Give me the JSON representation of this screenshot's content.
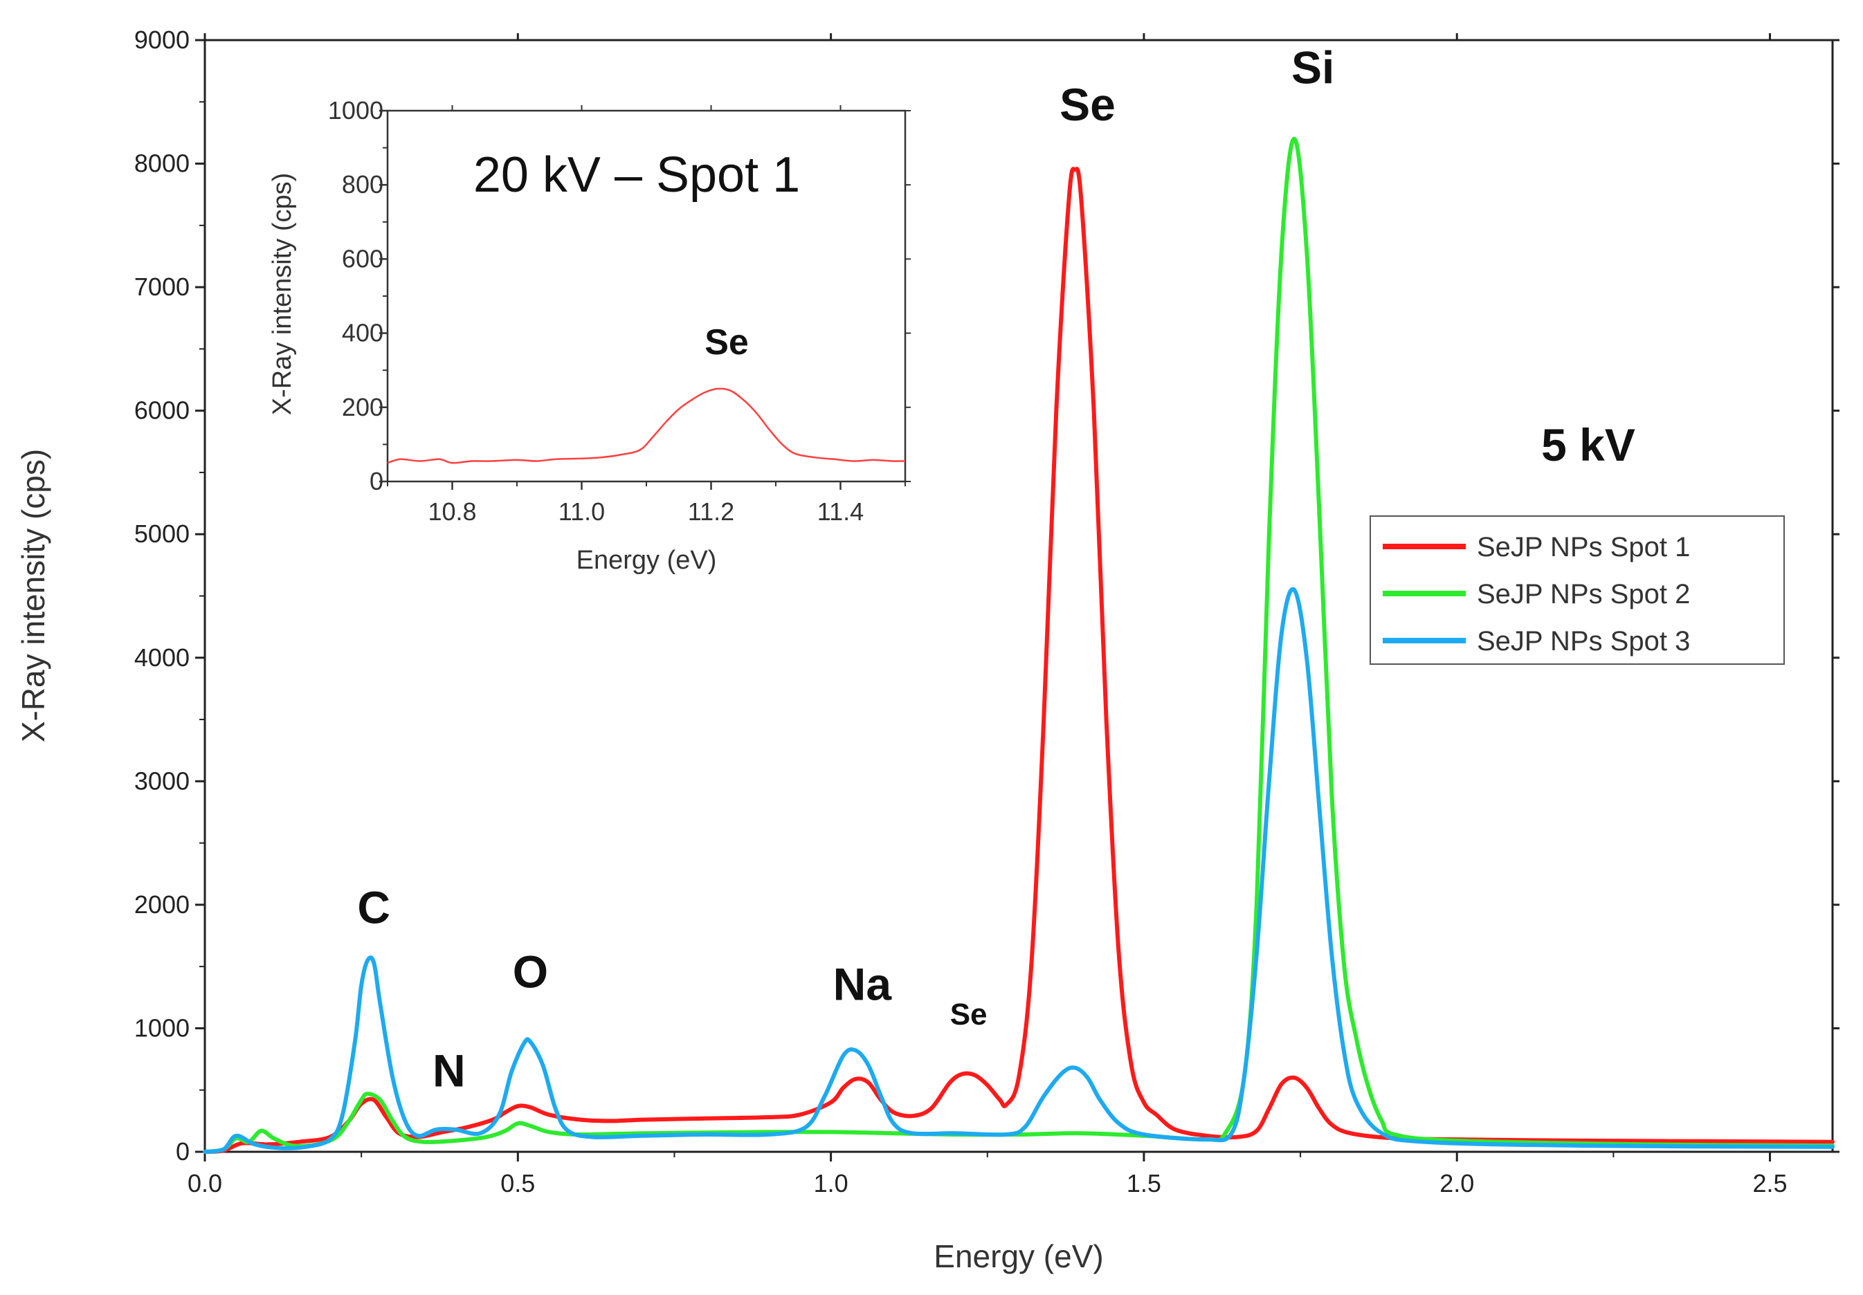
{
  "chart_data": [
    {
      "type": "line",
      "title": "",
      "annotation": "5 kV",
      "xlabel": "Energy (eV)",
      "ylabel": "X-Ray intensity (cps)",
      "xlim": [
        0.0,
        2.6
      ],
      "ylim": [
        0,
        9000
      ],
      "xticks": [
        "0.0",
        "0.5",
        "1.0",
        "1.5",
        "2.0",
        "2.5"
      ],
      "yticks": [
        "0",
        "1000",
        "2000",
        "3000",
        "4000",
        "5000",
        "6000",
        "7000",
        "8000",
        "9000"
      ],
      "legend_position": "right",
      "peak_labels": [
        {
          "text": "C",
          "x": 0.27,
          "y": 1850,
          "size": "large"
        },
        {
          "text": "N",
          "x": 0.39,
          "y": 530,
          "size": "large"
        },
        {
          "text": "O",
          "x": 0.52,
          "y": 1330,
          "size": "large"
        },
        {
          "text": "Na",
          "x": 1.05,
          "y": 1230,
          "size": "large"
        },
        {
          "text": "Se",
          "x": 1.22,
          "y": 1030,
          "size": "small"
        },
        {
          "text": "Se",
          "x": 1.41,
          "y": 8350,
          "size": "large"
        },
        {
          "text": "Si",
          "x": 1.77,
          "y": 8650,
          "size": "large"
        }
      ],
      "series": [
        {
          "name": "SeJP NPs Spot 1",
          "color": "#ff1a1a",
          "points": [
            [
              0.0,
              0
            ],
            [
              0.03,
              10
            ],
            [
              0.06,
              70
            ],
            [
              0.1,
              60
            ],
            [
              0.15,
              80
            ],
            [
              0.2,
              120
            ],
            [
              0.23,
              250
            ],
            [
              0.25,
              390
            ],
            [
              0.27,
              420
            ],
            [
              0.29,
              280
            ],
            [
              0.31,
              150
            ],
            [
              0.34,
              120
            ],
            [
              0.38,
              160
            ],
            [
              0.42,
              200
            ],
            [
              0.46,
              260
            ],
            [
              0.48,
              320
            ],
            [
              0.5,
              370
            ],
            [
              0.52,
              360
            ],
            [
              0.55,
              300
            ],
            [
              0.6,
              260
            ],
            [
              0.65,
              250
            ],
            [
              0.7,
              260
            ],
            [
              0.8,
              270
            ],
            [
              0.9,
              280
            ],
            [
              0.95,
              300
            ],
            [
              1.0,
              400
            ],
            [
              1.02,
              520
            ],
            [
              1.04,
              590
            ],
            [
              1.06,
              560
            ],
            [
              1.08,
              420
            ],
            [
              1.1,
              320
            ],
            [
              1.13,
              290
            ],
            [
              1.16,
              350
            ],
            [
              1.19,
              560
            ],
            [
              1.21,
              630
            ],
            [
              1.23,
              620
            ],
            [
              1.25,
              540
            ],
            [
              1.27,
              420
            ],
            [
              1.28,
              380
            ],
            [
              1.3,
              600
            ],
            [
              1.32,
              1500
            ],
            [
              1.34,
              3500
            ],
            [
              1.36,
              6000
            ],
            [
              1.38,
              7700
            ],
            [
              1.39,
              7950
            ],
            [
              1.4,
              7700
            ],
            [
              1.42,
              6000
            ],
            [
              1.44,
              3500
            ],
            [
              1.46,
              1600
            ],
            [
              1.48,
              700
            ],
            [
              1.5,
              400
            ],
            [
              1.52,
              300
            ],
            [
              1.55,
              180
            ],
            [
              1.6,
              130
            ],
            [
              1.65,
              120
            ],
            [
              1.68,
              170
            ],
            [
              1.7,
              350
            ],
            [
              1.72,
              550
            ],
            [
              1.74,
              600
            ],
            [
              1.76,
              520
            ],
            [
              1.78,
              350
            ],
            [
              1.8,
              220
            ],
            [
              1.83,
              150
            ],
            [
              1.9,
              110
            ],
            [
              2.0,
              100
            ],
            [
              2.2,
              90
            ],
            [
              2.4,
              85
            ],
            [
              2.6,
              80
            ]
          ]
        },
        {
          "name": "SeJP NPs Spot 2",
          "color": "#2eea2e",
          "points": [
            [
              0.0,
              0
            ],
            [
              0.03,
              20
            ],
            [
              0.05,
              110
            ],
            [
              0.07,
              80
            ],
            [
              0.09,
              170
            ],
            [
              0.11,
              110
            ],
            [
              0.14,
              50
            ],
            [
              0.18,
              60
            ],
            [
              0.21,
              120
            ],
            [
              0.23,
              250
            ],
            [
              0.25,
              420
            ],
            [
              0.26,
              470
            ],
            [
              0.28,
              420
            ],
            [
              0.3,
              250
            ],
            [
              0.32,
              120
            ],
            [
              0.35,
              80
            ],
            [
              0.4,
              90
            ],
            [
              0.45,
              120
            ],
            [
              0.48,
              170
            ],
            [
              0.5,
              230
            ],
            [
              0.52,
              210
            ],
            [
              0.55,
              160
            ],
            [
              0.6,
              140
            ],
            [
              0.7,
              150
            ],
            [
              0.9,
              160
            ],
            [
              1.0,
              160
            ],
            [
              1.1,
              150
            ],
            [
              1.2,
              140
            ],
            [
              1.3,
              140
            ],
            [
              1.4,
              150
            ],
            [
              1.5,
              130
            ],
            [
              1.6,
              100
            ],
            [
              1.63,
              150
            ],
            [
              1.66,
              600
            ],
            [
              1.68,
              2000
            ],
            [
              1.7,
              5000
            ],
            [
              1.72,
              7300
            ],
            [
              1.74,
              8200
            ],
            [
              1.76,
              7300
            ],
            [
              1.78,
              5200
            ],
            [
              1.8,
              2900
            ],
            [
              1.82,
              1500
            ],
            [
              1.84,
              900
            ],
            [
              1.86,
              500
            ],
            [
              1.88,
              250
            ],
            [
              1.9,
              140
            ],
            [
              2.0,
              90
            ],
            [
              2.3,
              60
            ],
            [
              2.6,
              50
            ]
          ]
        },
        {
          "name": "SeJP NPs Spot 3",
          "color": "#1eaaf0",
          "points": [
            [
              0.0,
              0
            ],
            [
              0.03,
              20
            ],
            [
              0.05,
              130
            ],
            [
              0.08,
              60
            ],
            [
              0.12,
              30
            ],
            [
              0.16,
              40
            ],
            [
              0.2,
              100
            ],
            [
              0.22,
              300
            ],
            [
              0.24,
              900
            ],
            [
              0.25,
              1350
            ],
            [
              0.26,
              1550
            ],
            [
              0.27,
              1530
            ],
            [
              0.28,
              1200
            ],
            [
              0.3,
              600
            ],
            [
              0.32,
              250
            ],
            [
              0.34,
              130
            ],
            [
              0.37,
              180
            ],
            [
              0.4,
              180
            ],
            [
              0.44,
              150
            ],
            [
              0.47,
              300
            ],
            [
              0.49,
              650
            ],
            [
              0.51,
              880
            ],
            [
              0.52,
              890
            ],
            [
              0.54,
              700
            ],
            [
              0.56,
              350
            ],
            [
              0.58,
              170
            ],
            [
              0.62,
              120
            ],
            [
              0.7,
              130
            ],
            [
              0.8,
              140
            ],
            [
              0.9,
              140
            ],
            [
              0.96,
              200
            ],
            [
              0.99,
              450
            ],
            [
              1.02,
              780
            ],
            [
              1.04,
              820
            ],
            [
              1.06,
              700
            ],
            [
              1.08,
              450
            ],
            [
              1.1,
              230
            ],
            [
              1.13,
              150
            ],
            [
              1.2,
              150
            ],
            [
              1.28,
              140
            ],
            [
              1.31,
              200
            ],
            [
              1.34,
              450
            ],
            [
              1.37,
              640
            ],
            [
              1.39,
              680
            ],
            [
              1.41,
              600
            ],
            [
              1.43,
              420
            ],
            [
              1.46,
              230
            ],
            [
              1.5,
              140
            ],
            [
              1.6,
              100
            ],
            [
              1.64,
              150
            ],
            [
              1.66,
              600
            ],
            [
              1.68,
              1600
            ],
            [
              1.7,
              3000
            ],
            [
              1.72,
              4200
            ],
            [
              1.74,
              4550
            ],
            [
              1.76,
              4000
            ],
            [
              1.78,
              2800
            ],
            [
              1.8,
              1600
            ],
            [
              1.82,
              800
            ],
            [
              1.84,
              400
            ],
            [
              1.88,
              150
            ],
            [
              1.95,
              80
            ],
            [
              2.2,
              50
            ],
            [
              2.6,
              40
            ]
          ]
        }
      ]
    },
    {
      "type": "line",
      "title": "20 kV – Spot 1",
      "xlabel": "Energy (eV)",
      "ylabel": "X-Ray intensity (cps)",
      "xlim": [
        10.7,
        11.5
      ],
      "ylim": [
        0,
        1000
      ],
      "xticks": [
        "10.8",
        "11.0",
        "11.2",
        "11.4"
      ],
      "yticks": [
        "0",
        "200",
        "400",
        "600",
        "800",
        "1000"
      ],
      "peak_labels": [
        {
          "text": "Se",
          "x": 11.21,
          "y": 330
        }
      ],
      "series": [
        {
          "name": "Spot 1 (20 kV)",
          "color": "#ff4040",
          "points": [
            [
              10.7,
              50
            ],
            [
              10.72,
              60
            ],
            [
              10.75,
              55
            ],
            [
              10.78,
              60
            ],
            [
              10.8,
              50
            ],
            [
              10.83,
              55
            ],
            [
              10.86,
              55
            ],
            [
              10.9,
              58
            ],
            [
              10.93,
              55
            ],
            [
              10.96,
              60
            ],
            [
              11.0,
              62
            ],
            [
              11.03,
              65
            ],
            [
              11.06,
              72
            ],
            [
              11.09,
              85
            ],
            [
              11.11,
              120
            ],
            [
              11.13,
              160
            ],
            [
              11.15,
              195
            ],
            [
              11.17,
              220
            ],
            [
              11.19,
              240
            ],
            [
              11.21,
              250
            ],
            [
              11.23,
              245
            ],
            [
              11.25,
              220
            ],
            [
              11.27,
              185
            ],
            [
              11.29,
              140
            ],
            [
              11.31,
              100
            ],
            [
              11.33,
              75
            ],
            [
              11.36,
              65
            ],
            [
              11.39,
              60
            ],
            [
              11.42,
              55
            ],
            [
              11.45,
              58
            ],
            [
              11.48,
              55
            ],
            [
              11.5,
              55
            ]
          ]
        }
      ]
    }
  ]
}
